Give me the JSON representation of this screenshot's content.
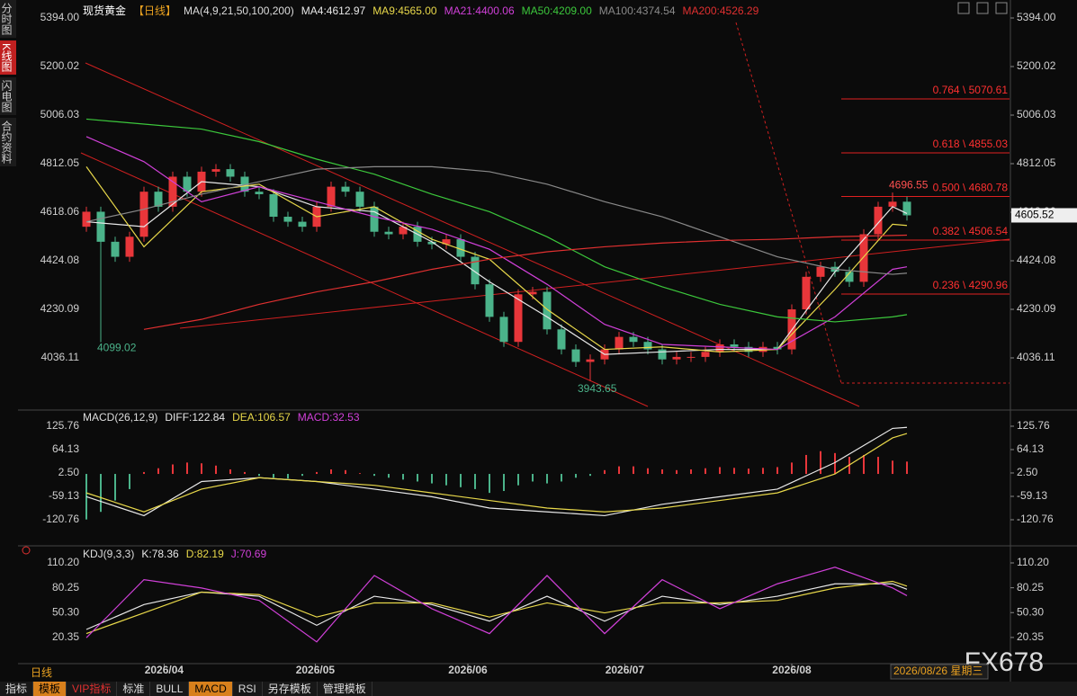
{
  "sidebar_tabs": [
    "分时图",
    "K线图",
    "闪电图",
    "合约资料"
  ],
  "chart_data": {
    "type": "candlestick",
    "symbol": "现货黄金",
    "period": "【日线】",
    "ma_title": "MA(4,9,21,50,100,200)",
    "open": [
      4560,
      4620,
      4500,
      4440,
      4520,
      4700,
      4640,
      4760,
      4700,
      4780,
      4790,
      4760,
      4700,
      4690,
      4600,
      4580,
      4560,
      4640,
      4720,
      4700,
      4640,
      4540,
      4530,
      4560,
      4500,
      4490,
      4510,
      4440,
      4330,
      4200,
      4100,
      4290,
      4300,
      4150,
      4070,
      4020,
      4030,
      4070,
      4120,
      4100,
      4070,
      4030,
      4040,
      4040,
      4060,
      4090,
      4080,
      4060,
      4080,
      4070,
      4230,
      4360,
      4400,
      4380,
      4340,
      4530,
      4640,
      4660
    ],
    "high": [
      4640,
      4640,
      4520,
      4540,
      4720,
      4720,
      4780,
      4780,
      4800,
      4810,
      4810,
      4780,
      4720,
      4710,
      4620,
      4600,
      4660,
      4740,
      4740,
      4720,
      4660,
      4560,
      4580,
      4580,
      4520,
      4530,
      4530,
      4460,
      4350,
      4220,
      4310,
      4320,
      4320,
      4170,
      4090,
      4050,
      4090,
      4140,
      4140,
      4120,
      4090,
      4060,
      4060,
      4080,
      4110,
      4110,
      4100,
      4100,
      4100,
      4250,
      4380,
      4420,
      4420,
      4400,
      4550,
      4660,
      4696.55,
      4680
    ],
    "low": [
      4540,
      4099.02,
      4420,
      4420,
      4500,
      4620,
      4620,
      4680,
      4680,
      4760,
      4740,
      4680,
      4670,
      4580,
      4560,
      4540,
      4540,
      4620,
      4680,
      4620,
      4520,
      4510,
      4510,
      4480,
      4470,
      4470,
      4420,
      4310,
      4180,
      4080,
      4080,
      4270,
      4130,
      4050,
      4000,
      3943.65,
      4010,
      4050,
      4080,
      4050,
      4010,
      4010,
      4020,
      4020,
      4040,
      4060,
      4040,
      4040,
      4050,
      4050,
      4210,
      4340,
      4360,
      4320,
      4320,
      4510,
      4620,
      4585
    ],
    "close": [
      4620,
      4500,
      4440,
      4520,
      4700,
      4640,
      4760,
      4700,
      4780,
      4790,
      4760,
      4700,
      4690,
      4600,
      4580,
      4560,
      4640,
      4720,
      4700,
      4640,
      4540,
      4530,
      4560,
      4500,
      4490,
      4510,
      4440,
      4330,
      4200,
      4100,
      4290,
      4300,
      4150,
      4070,
      4020,
      4030,
      4070,
      4120,
      4100,
      4070,
      4030,
      4040,
      4040,
      4060,
      4090,
      4080,
      4060,
      4080,
      4070,
      4230,
      4360,
      4400,
      4380,
      4340,
      4530,
      4640,
      4660,
      4605.52
    ],
    "ylim": [
      3831.3,
      5422.7
    ],
    "yticks": [
      {
        "value": 5394,
        "label": "5394.00"
      },
      5200.02,
      5006.03,
      4812.05,
      4618.06,
      4424.08,
      4230.09,
      4036.11
    ],
    "xticks": [
      {
        "value": 5.4,
        "label": "2026/04"
      },
      {
        "value": 15.9,
        "label": "2026/05"
      },
      {
        "value": 26.5,
        "label": "2026/06"
      },
      {
        "value": 37.4,
        "label": "2026/07"
      },
      {
        "value": 49,
        "label": "2026/08"
      }
    ],
    "ma_x": [
      0,
      4,
      8,
      12,
      16,
      20,
      24,
      28,
      32,
      36,
      40,
      44,
      48,
      52,
      56,
      57
    ],
    "ma_series": [
      {
        "name": "MA4:",
        "label": "4612.97",
        "color": "#e8e8e8",
        "values": [
          4580,
          4560,
          4740,
          4720,
          4640,
          4620,
          4500,
          4340,
          4200,
          4050,
          4060,
          4070,
          4070,
          4380,
          4640,
          4612.97
        ]
      },
      {
        "name": "MA9:",
        "label": "4565.00",
        "color": "#e8d84a",
        "values": [
          4800,
          4480,
          4700,
          4730,
          4600,
          4640,
          4510,
          4430,
          4230,
          4070,
          4080,
          4060,
          4070,
          4310,
          4570,
          4565
        ]
      },
      {
        "name": "MA21:",
        "label": "4400.06",
        "color": "#d040d8",
        "values": [
          4920,
          4820,
          4660,
          4720,
          4660,
          4600,
          4550,
          4470,
          4330,
          4170,
          4090,
          4080,
          4070,
          4200,
          4390,
          4400.06
        ]
      },
      {
        "name": "MA50:",
        "label": "4209.00",
        "color": "#3cc83c",
        "values": [
          4990,
          4970,
          4950,
          4900,
          4830,
          4770,
          4690,
          4620,
          4520,
          4400,
          4320,
          4250,
          4200,
          4180,
          4200,
          4209
        ]
      },
      {
        "name": "MA100:",
        "label": "4374.54",
        "color": "#8a8a8a",
        "values": [
          4580,
          4630,
          4690,
          4740,
          4790,
          4800,
          4800,
          4780,
          4730,
          4660,
          4600,
          4520,
          4440,
          4390,
          4370,
          4374.54
        ]
      },
      {
        "name": "MA200:",
        "label": "4526.29",
        "color": "#e03030",
        "values": [
          null,
          4150,
          4190,
          4250,
          4300,
          4340,
          4390,
          4430,
          4460,
          4480,
          4495,
          4505,
          4510,
          4520,
          4525,
          4526.29
        ]
      }
    ],
    "fib": [
      {
        "value": 5070.61,
        "label": "0.764 \\ 5070.61"
      },
      {
        "value": 4855.03,
        "label": "0.618 \\ 4855.03"
      },
      {
        "value": 4680.78,
        "label": "0.500 \\ 4680.78"
      },
      {
        "value": 4506.54,
        "label": "0.382 \\ 4506.54"
      },
      {
        "value": 4290.96,
        "label": "0.236 \\ 4290.96"
      }
    ],
    "macd": {
      "title": "MACD(26,12,9)",
      "ylim": [
        -184.8,
        135.2
      ],
      "yticks": [
        125.76,
        64.13,
        {
          "value": 2.5,
          "label": "2.50"
        },
        -59.13,
        -120.76
      ],
      "histogram": [
        -120,
        -100,
        -70,
        -40,
        5,
        15,
        25,
        30,
        28,
        22,
        12,
        5,
        -5,
        -10,
        -12,
        -5,
        5,
        12,
        10,
        2,
        -5,
        -10,
        -15,
        -20,
        -25,
        -30,
        -35,
        -40,
        -50,
        -45,
        -30,
        -20,
        -25,
        -20,
        -10,
        -5,
        10,
        20,
        20,
        15,
        12,
        10,
        12,
        15,
        18,
        16,
        14,
        16,
        18,
        30,
        50,
        60,
        55,
        45,
        50,
        45,
        35,
        32.53
      ],
      "hist_name": "MACD:",
      "series": [
        {
          "name": "DIFF:",
          "label": "122.84",
          "color": "#e8e8e8",
          "values": [
            -60,
            -110,
            -20,
            -10,
            -20,
            -40,
            -60,
            -90,
            -100,
            -110,
            -80,
            -60,
            -40,
            30,
            120,
            122.84
          ]
        },
        {
          "name": "DEA:",
          "label": "106.57",
          "color": "#e8d84a",
          "values": [
            -50,
            -100,
            -40,
            -10,
            -20,
            -30,
            -50,
            -70,
            -90,
            -100,
            -90,
            -70,
            -50,
            0,
            95,
            106.57
          ]
        }
      ]
    },
    "kdj": {
      "title": "KDJ(9,3,3)",
      "ylim": [
        -11.2,
        116.7
      ],
      "yticks": [
        {
          "value": 110.2,
          "label": "110.20"
        },
        80.25,
        {
          "value": 50.3,
          "label": "50.30"
        },
        20.35
      ],
      "series": [
        {
          "name": "K:",
          "label": "78.36",
          "color": "#e8e8e8",
          "values": [
            30,
            60,
            75,
            70,
            35,
            70,
            60,
            40,
            70,
            40,
            70,
            60,
            70,
            85,
            85,
            78.36
          ]
        },
        {
          "name": "D:",
          "label": "82.19",
          "color": "#e8d84a",
          "values": [
            25,
            50,
            75,
            72,
            45,
            62,
            62,
            45,
            62,
            50,
            62,
            62,
            65,
            80,
            88,
            82.19
          ]
        },
        {
          "name": "J:",
          "label": "70.69",
          "color": "#d040d8",
          "values": [
            20,
            90,
            80,
            65,
            15,
            95,
            55,
            25,
            95,
            25,
            90,
            55,
            85,
            105,
            80,
            70.69
          ]
        }
      ]
    }
  },
  "period_label": "日线",
  "date_label": "2026/08/26 星期三",
  "watermark": "FX678",
  "toolbar": [
    "指标",
    "模板",
    "VIP指标",
    "标准",
    "BULL",
    "MACD",
    "RSI",
    "另存模板",
    "管理模板"
  ]
}
